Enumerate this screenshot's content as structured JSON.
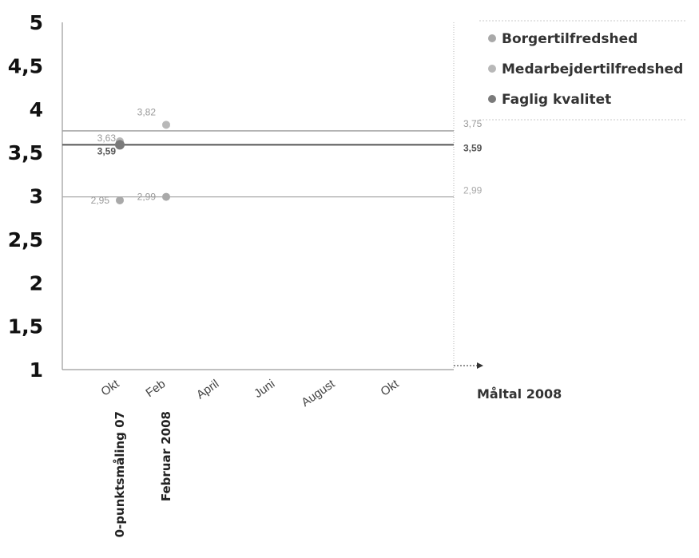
{
  "chart_data": {
    "type": "scatter",
    "ylim": [
      1,
      5
    ],
    "yticks": [
      "5",
      "4,5",
      "4",
      "3,5",
      "3",
      "2,5",
      "2",
      "1,5",
      "1"
    ],
    "ytick_values": [
      5,
      4.5,
      4,
      3.5,
      3,
      2.5,
      2,
      1.5,
      1
    ],
    "categories": [
      "Okt",
      "Feb",
      "April",
      "Juni",
      "August",
      "Okt"
    ],
    "vertical_labels": [
      "0-punktsmåling 07",
      "Februar 2008"
    ],
    "series": [
      {
        "name": "Borgertilfredshed",
        "color": "#a9a9a9",
        "points": [
          {
            "category": 0,
            "value": 2.95,
            "label": "2,95"
          },
          {
            "category": 1,
            "value": 2.99,
            "label": "2,99"
          }
        ]
      },
      {
        "name": "Medarbejdertilfredshed",
        "color": "#b8b8b8",
        "points": [
          {
            "category": 0,
            "value": 3.63,
            "label": "3,63"
          },
          {
            "category": 1,
            "value": 3.82,
            "label": "3,82"
          }
        ]
      },
      {
        "name": "Faglig kvalitet",
        "color": "#7a7a7a",
        "points": [
          {
            "category": 0,
            "value": 3.59,
            "label": "3,59"
          }
        ]
      }
    ],
    "targets": [
      {
        "series": "Medarbejdertilfredshed",
        "value": 3.75,
        "label": "3,75",
        "color": "#999999"
      },
      {
        "series": "Faglig kvalitet",
        "value": 3.59,
        "label": "3,59",
        "color": "#555555"
      },
      {
        "series": "Borgertilfredshed",
        "value": 2.99,
        "label": "2,99",
        "color": "#aaaaaa"
      }
    ],
    "target_title": "Måltal 2008",
    "legend_position": "top-right"
  }
}
